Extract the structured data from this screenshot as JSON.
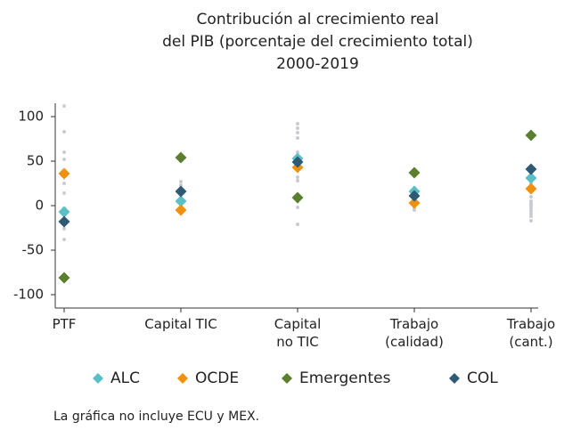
{
  "chart_data": {
    "type": "dot",
    "title": "Contribución al crecimiento real\ndel PIB (porcentaje del crecimiento total)\n2000-2019",
    "categories": [
      "PTF",
      "Capital TIC",
      "Capital\nno TIC",
      "Trabajo\n(calidad)",
      "Trabajo\n(cant.)"
    ],
    "dots": {
      "color": "#c9cbd3",
      "values": [
        [
          112,
          83,
          60,
          52,
          38,
          25,
          14,
          -3,
          -10,
          -20,
          -26,
          -38
        ],
        [
          27,
          23,
          20,
          18,
          12,
          8,
          3,
          0
        ],
        [
          92,
          87,
          82,
          76,
          60,
          56,
          50,
          45,
          40,
          32,
          28,
          10,
          5,
          -2,
          -21
        ],
        [
          20,
          17,
          15,
          12,
          8,
          6,
          3,
          0,
          -3,
          -5
        ],
        [
          40,
          35,
          30,
          25,
          10,
          5,
          2,
          0,
          -3,
          -6,
          -9,
          -12,
          -17
        ]
      ]
    },
    "series": [
      {
        "name": "ALC",
        "color": "#5bbfc6",
        "values": [
          -7,
          5,
          53,
          16,
          31
        ]
      },
      {
        "name": "OCDE",
        "color": "#f0900f",
        "values": [
          36,
          -5,
          43,
          3,
          19
        ]
      },
      {
        "name": "Emergentes",
        "color": "#5b7f2f",
        "values": [
          -81,
          54,
          9,
          37,
          79
        ]
      },
      {
        "name": "COL",
        "color": "#2e5a73",
        "values": [
          -18,
          16,
          49,
          11,
          41
        ]
      }
    ],
    "ylim": [
      -115,
      115
    ],
    "yticks": [
      -100,
      -50,
      0,
      50,
      100
    ],
    "legend": "bottom",
    "note": "La gráfica no incluye ECU y MEX."
  }
}
